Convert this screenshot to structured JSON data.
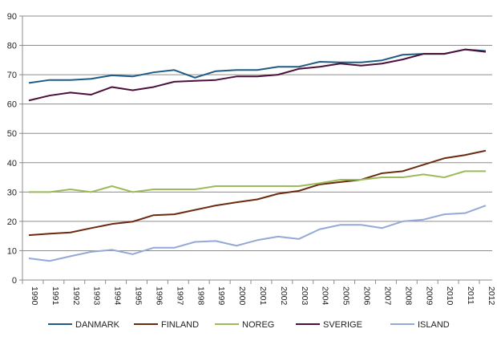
{
  "chart_data": {
    "type": "line",
    "title": "",
    "xlabel": "",
    "ylabel": "",
    "ylim": [
      0,
      90
    ],
    "yticks": [
      "0",
      "10",
      "20",
      "30",
      "40",
      "50",
      "60",
      "70",
      "80",
      "90"
    ],
    "grid": true,
    "legend_position": "bottom",
    "x": [
      "1990",
      "1991",
      "1992",
      "1993",
      "1994",
      "1995",
      "1996",
      "1997",
      "1998",
      "1999",
      "2000",
      "2001",
      "2002",
      "2003",
      "2004",
      "2005",
      "2006",
      "2007",
      "2008",
      "2009",
      "2010",
      "2011",
      "2012"
    ],
    "series": [
      {
        "name": "DANMARK",
        "color": "#1f5b85",
        "values": [
          67.2,
          68.2,
          68.2,
          68.6,
          69.8,
          69.4,
          70.8,
          71.6,
          69.0,
          71.2,
          71.6,
          71.6,
          72.7,
          72.7,
          74.4,
          74.2,
          74.2,
          74.9,
          76.8,
          77.1,
          77.1,
          78.6,
          78.1
        ]
      },
      {
        "name": "FINLAND",
        "color": "#6b2a10",
        "values": [
          15.3,
          15.8,
          16.2,
          17.7,
          19.1,
          19.9,
          22.1,
          22.4,
          23.9,
          25.4,
          26.5,
          27.5,
          29.4,
          30.4,
          32.6,
          33.4,
          34.2,
          36.4,
          37.1,
          39.3,
          41.5,
          42.6,
          44.1
        ]
      },
      {
        "name": "NOREG",
        "color": "#9bbb59",
        "values": [
          30,
          30,
          30.9,
          30,
          32,
          30,
          30.9,
          30.9,
          30.9,
          32,
          32,
          32,
          32,
          32,
          33,
          34.2,
          34.2,
          35,
          35,
          36,
          35,
          37.1,
          37.1
        ]
      },
      {
        "name": "SVERIGE",
        "color": "#4b0f3a",
        "values": [
          61.2,
          62.9,
          63.9,
          63.2,
          65.8,
          64.7,
          65.8,
          67.6,
          67.9,
          68.2,
          69.4,
          69.4,
          70.0,
          72.0,
          72.7,
          73.8,
          73.1,
          73.8,
          75.2,
          77.1,
          77.1,
          78.6,
          77.8
        ]
      },
      {
        "name": "ISLAND",
        "color": "#94a9d4",
        "values": [
          7.4,
          6.5,
          8.1,
          9.6,
          10.3,
          8.8,
          11,
          11,
          13,
          13.3,
          11.7,
          13.6,
          14.8,
          14,
          17.3,
          18.8,
          18.8,
          17.7,
          20,
          20.6,
          22.4,
          22.8,
          25.4
        ]
      }
    ]
  }
}
